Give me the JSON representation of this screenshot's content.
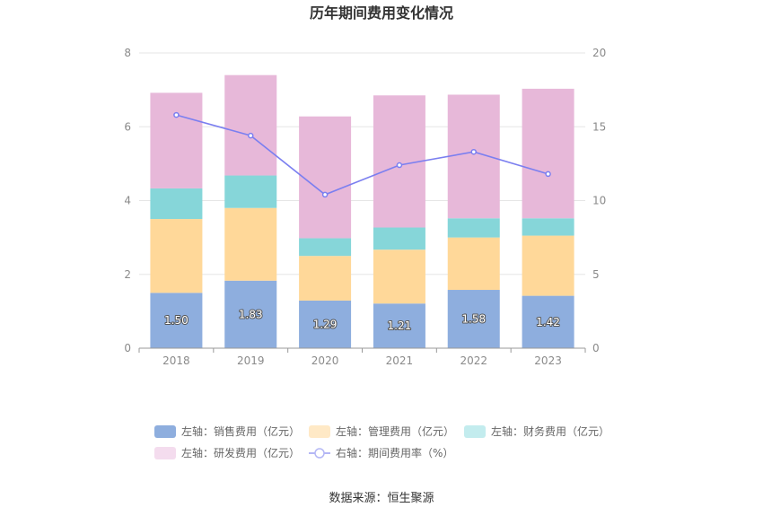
{
  "chart_data": {
    "type": "bar",
    "title": "历年期间费用变化情况",
    "categories": [
      "2018",
      "2019",
      "2020",
      "2021",
      "2022",
      "2023"
    ],
    "left_axis": {
      "ylim": [
        0,
        8
      ],
      "ticks": [
        "0",
        "2",
        "4",
        "6",
        "8"
      ]
    },
    "right_axis": {
      "ylim": [
        0,
        20
      ],
      "ticks": [
        "0",
        "5",
        "10",
        "15",
        "20"
      ]
    },
    "stacked": true,
    "series": [
      {
        "name": "左轴：销售费用（亿元）",
        "axis": "left",
        "type": "bar",
        "color": "#8eaede",
        "values": [
          1.5,
          1.83,
          1.29,
          1.21,
          1.58,
          1.42
        ],
        "data_labels": [
          "1.50",
          "1.83",
          "1.29",
          "1.21",
          "1.58",
          "1.42"
        ]
      },
      {
        "name": "左轴：管理费用（亿元）",
        "axis": "left",
        "type": "bar",
        "color": "#ffd899",
        "values": [
          2.0,
          1.97,
          1.21,
          1.46,
          1.42,
          1.63
        ]
      },
      {
        "name": "左轴：财务费用（亿元）",
        "axis": "left",
        "type": "bar",
        "color": "#86d6d9",
        "values": [
          0.83,
          0.88,
          0.48,
          0.6,
          0.52,
          0.47
        ]
      },
      {
        "name": "左轴：研发费用（亿元）",
        "axis": "left",
        "type": "bar",
        "color": "#e7b8d9",
        "values": [
          2.59,
          2.72,
          3.3,
          3.58,
          3.35,
          3.51
        ]
      },
      {
        "name": "右轴：期间费用率（%）",
        "axis": "right",
        "type": "line",
        "color": "#7b7ff0",
        "values": [
          15.8,
          14.4,
          10.4,
          12.4,
          13.3,
          11.8
        ]
      }
    ],
    "legend_position": "bottom",
    "grid": true,
    "source": "数据来源：恒生聚源"
  }
}
